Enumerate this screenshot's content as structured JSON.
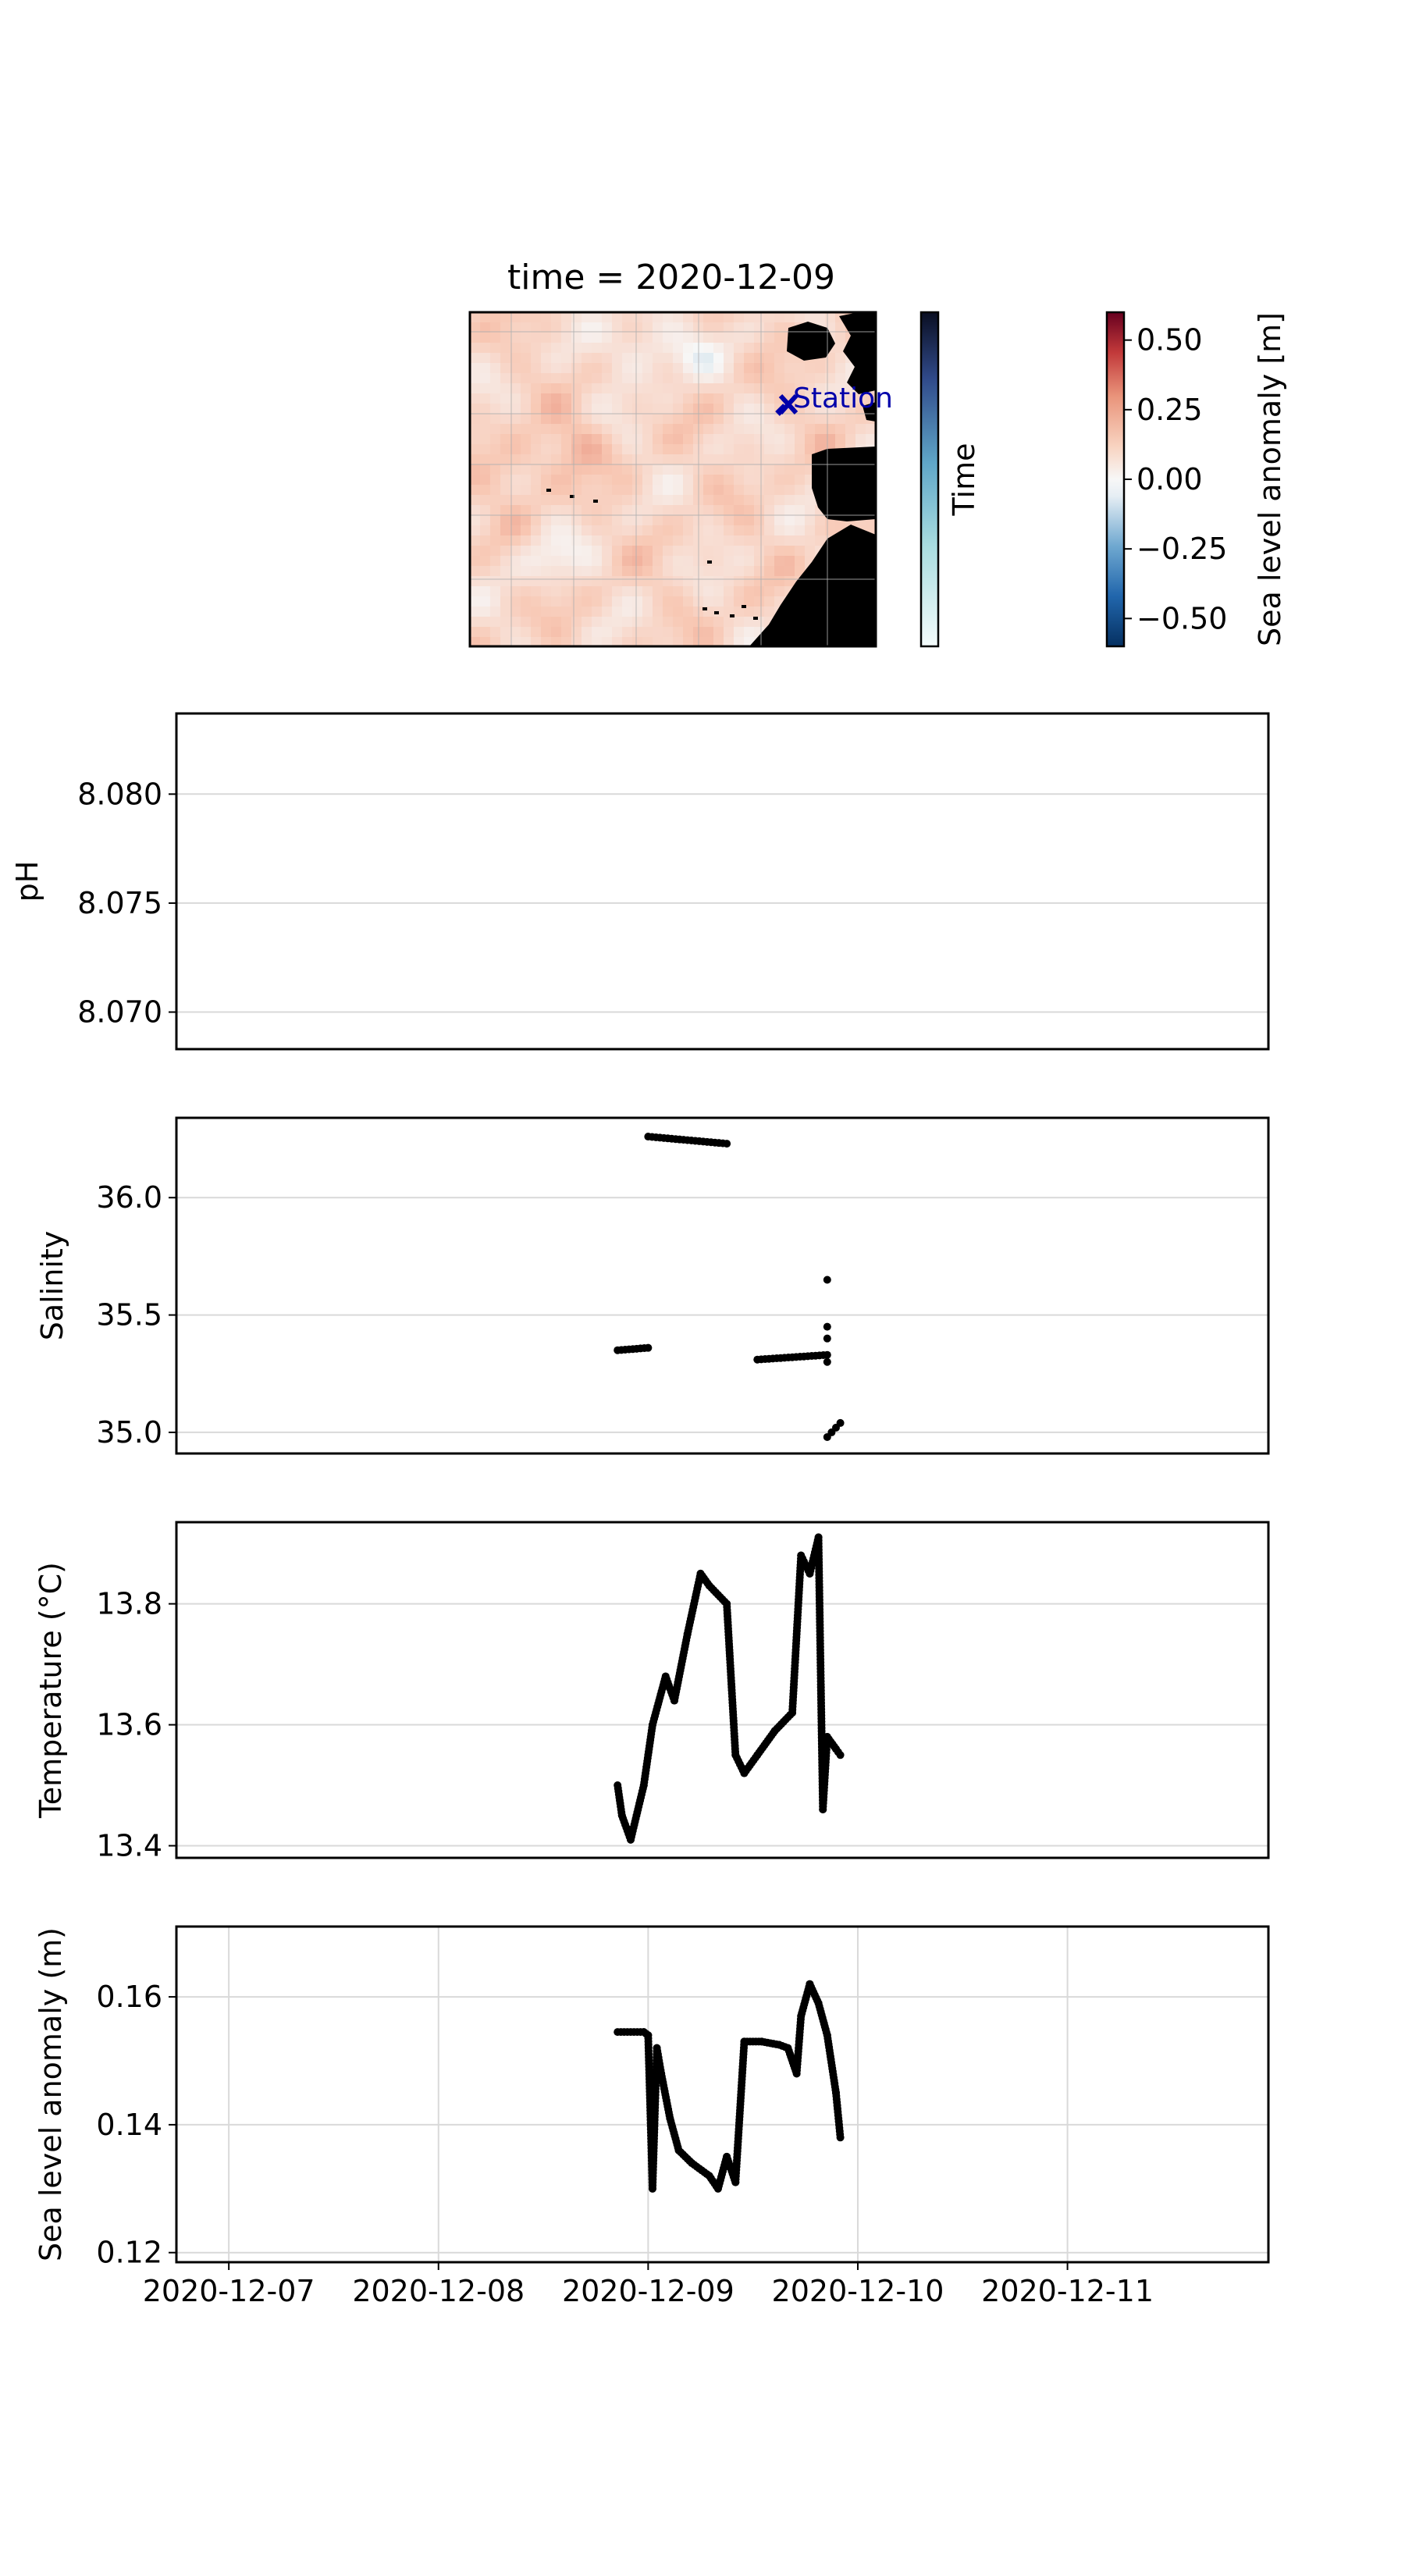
{
  "map": {
    "title": "time = 2020-12-09",
    "station_label": "Station",
    "time_colorbar_label": "Time",
    "sla_colorbar_label": "Sea level anomaly [m]",
    "sla_ticks": [
      "0.50",
      "0.25",
      "0.00",
      "−0.25",
      "−0.50"
    ],
    "sla_range": [
      -0.6,
      0.6
    ],
    "colormap": "RdBu_r",
    "land_color": "#000000",
    "station_color": "#0000aa"
  },
  "x_axis": {
    "range": [
      "2020-12-06 18:00",
      "2020-12-11 23:00"
    ],
    "tick_labels": [
      "2020-12-07",
      "2020-12-08",
      "2020-12-09",
      "2020-12-10",
      "2020-12-11"
    ]
  },
  "chart_data": [
    {
      "type": "scatter",
      "ylabel": "pH",
      "ylim": [
        8.0683,
        8.0837
      ],
      "ytick_labels": [
        "8.080",
        "8.075",
        "8.070"
      ],
      "ytick_values": [
        8.08,
        8.075,
        8.07
      ],
      "grid": true,
      "x": [],
      "y": []
    },
    {
      "type": "scatter",
      "ylabel": "Salinity",
      "ylim": [
        34.91,
        36.34
      ],
      "ytick_labels": [
        "36.0",
        "35.5",
        "35.0"
      ],
      "ytick_values": [
        36.0,
        35.5,
        35.0
      ],
      "grid": true,
      "segments": [
        {
          "x": [
            "2020-12-08 20:30",
            "2020-12-09 00:00"
          ],
          "y": [
            35.35,
            35.36
          ]
        },
        {
          "x": [
            "2020-12-09 00:00",
            "2020-12-09 09:00"
          ],
          "y": [
            36.26,
            36.23
          ]
        },
        {
          "x": [
            "2020-12-09 12:30",
            "2020-12-09 20:30"
          ],
          "y": [
            35.31,
            35.33
          ]
        }
      ],
      "points": [
        {
          "x": "2020-12-09 20:30",
          "y": 35.65
        },
        {
          "x": "2020-12-09 20:30",
          "y": 35.45
        },
        {
          "x": "2020-12-09 20:30",
          "y": 35.4
        },
        {
          "x": "2020-12-09 20:30",
          "y": 35.3
        },
        {
          "x": "2020-12-09 20:30",
          "y": 34.98
        },
        {
          "x": "2020-12-09 21:00",
          "y": 35.0
        },
        {
          "x": "2020-12-09 21:30",
          "y": 35.02
        },
        {
          "x": "2020-12-09 22:00",
          "y": 35.04
        }
      ]
    },
    {
      "type": "line",
      "ylabel": "Temperature (°C)",
      "ylim": [
        13.38,
        13.935
      ],
      "ytick_labels": [
        "13.8",
        "13.6",
        "13.4"
      ],
      "ytick_values": [
        13.8,
        13.6,
        13.4
      ],
      "grid": true,
      "x": [
        "2020-12-08 20:30",
        "2020-12-08 21:00",
        "2020-12-08 22:00",
        "2020-12-08 23:30",
        "2020-12-09 00:30",
        "2020-12-09 02:00",
        "2020-12-09 03:00",
        "2020-12-09 04:30",
        "2020-12-09 06:00",
        "2020-12-09 07:00",
        "2020-12-09 09:00",
        "2020-12-09 10:00",
        "2020-12-09 11:00",
        "2020-12-09 12:30",
        "2020-12-09 14:30",
        "2020-12-09 16:30",
        "2020-12-09 17:30",
        "2020-12-09 18:30",
        "2020-12-09 19:30",
        "2020-12-09 20:00",
        "2020-12-09 20:30",
        "2020-12-09 21:30",
        "2020-12-09 22:00"
      ],
      "y": [
        13.5,
        13.45,
        13.41,
        13.5,
        13.6,
        13.68,
        13.64,
        13.75,
        13.85,
        13.83,
        13.8,
        13.55,
        13.52,
        13.55,
        13.59,
        13.62,
        13.88,
        13.85,
        13.91,
        13.46,
        13.58,
        13.56,
        13.55
      ]
    },
    {
      "type": "line",
      "ylabel": "Sea level anomaly (m)",
      "ylim": [
        0.1185,
        0.171
      ],
      "ytick_labels": [
        "0.16",
        "0.14",
        "0.12"
      ],
      "ytick_values": [
        0.16,
        0.14,
        0.12
      ],
      "grid": true,
      "x": [
        "2020-12-08 20:30",
        "2020-12-08 23:30",
        "2020-12-09 00:00",
        "2020-12-09 00:30",
        "2020-12-09 01:00",
        "2020-12-09 01:30",
        "2020-12-09 02:30",
        "2020-12-09 03:30",
        "2020-12-09 05:00",
        "2020-12-09 07:00",
        "2020-12-09 08:00",
        "2020-12-09 09:00",
        "2020-12-09 10:00",
        "2020-12-09 11:00",
        "2020-12-09 13:00",
        "2020-12-09 15:00",
        "2020-12-09 16:00",
        "2020-12-09 17:00",
        "2020-12-09 17:30",
        "2020-12-09 18:30",
        "2020-12-09 19:30",
        "2020-12-09 20:30",
        "2020-12-09 21:30",
        "2020-12-09 22:00"
      ],
      "y": [
        0.1545,
        0.1545,
        0.154,
        0.13,
        0.152,
        0.148,
        0.141,
        0.136,
        0.134,
        0.132,
        0.13,
        0.135,
        0.131,
        0.153,
        0.153,
        0.1525,
        0.152,
        0.148,
        0.157,
        0.162,
        0.159,
        0.154,
        0.145,
        0.138
      ]
    }
  ]
}
